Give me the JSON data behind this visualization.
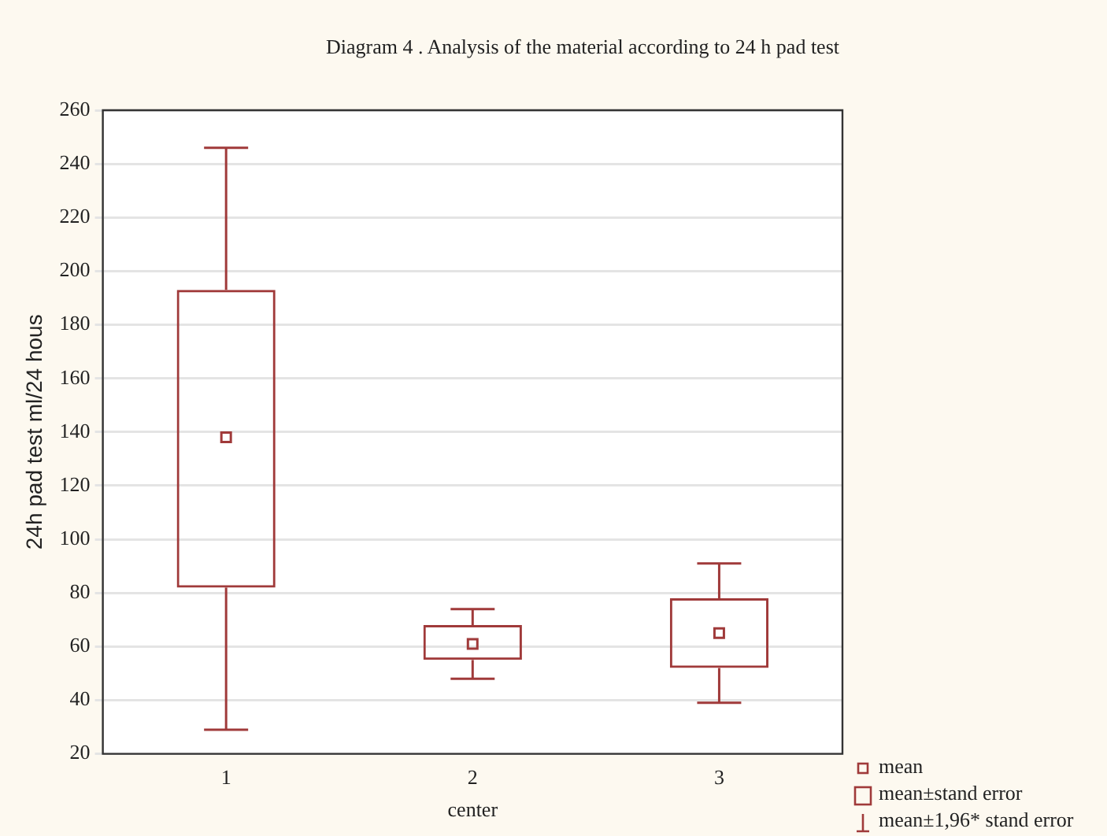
{
  "chart_data": {
    "type": "box",
    "title": "Diagram 4 . Analysis of the material according to 24 h pad test",
    "xlabel": "center",
    "ylabel": "24h pad test ml/24 hous",
    "categories": [
      "1",
      "2",
      "3"
    ],
    "color": "#a03a3a",
    "boxes": [
      {
        "low": 29,
        "q1": 82,
        "q3": 193,
        "high": 246,
        "mean": 138
      },
      {
        "low": 48,
        "q1": 55,
        "q3": 68,
        "high": 74,
        "mean": 61
      },
      {
        "low": 39,
        "q1": 52,
        "q3": 78,
        "high": 91,
        "mean": 65
      }
    ],
    "ylim": [
      20,
      260
    ],
    "yticks": [
      20,
      40,
      60,
      80,
      100,
      120,
      140,
      160,
      180,
      200,
      220,
      240,
      260
    ],
    "grid": "y",
    "annotations": [
      "mean",
      "mean±stand error",
      "mean±1,96* stand error"
    ]
  }
}
